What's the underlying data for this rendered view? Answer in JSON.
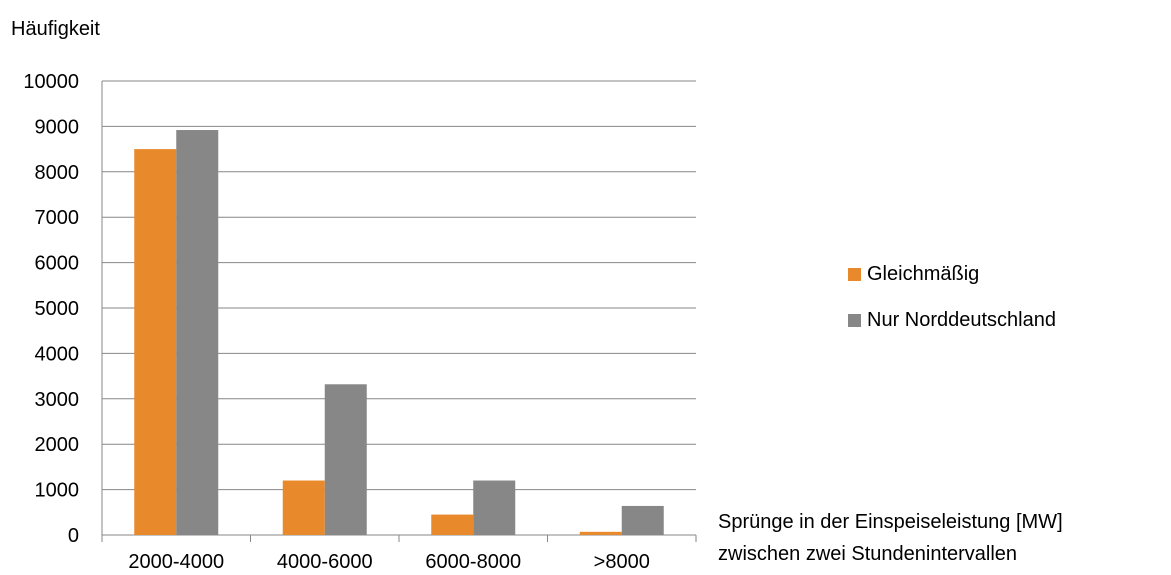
{
  "chart_data": {
    "type": "bar",
    "ylabel": "Häufigkeit",
    "xlabel_line1": "Sprünge in der Einspeiseleistung [MW]",
    "xlabel_line2": "zwischen zwei Stundenintervallen",
    "categories": [
      "2000-4000",
      "4000-6000",
      "6000-8000",
      ">8000"
    ],
    "series": [
      {
        "name": "Gleichmäßig",
        "color": "#E8892B",
        "values": [
          8500,
          1200,
          450,
          70
        ]
      },
      {
        "name": "Nur Norddeutschland",
        "color": "#878787",
        "values": [
          8920,
          3320,
          1200,
          640
        ]
      }
    ],
    "ylim": [
      0,
      10000
    ],
    "yticks": [
      0,
      1000,
      2000,
      3000,
      4000,
      5000,
      6000,
      7000,
      8000,
      9000,
      10000
    ],
    "grid": true,
    "legend_position": "right"
  }
}
